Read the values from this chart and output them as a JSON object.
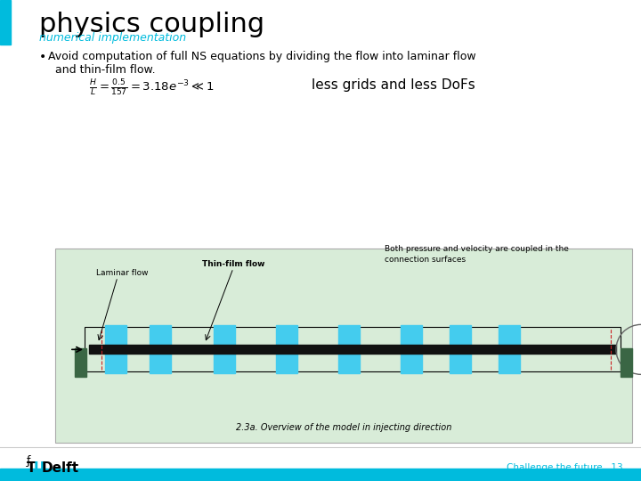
{
  "title": "physics coupling",
  "subtitle": "numerical implementation",
  "subtitle_color": "#00BBDD",
  "title_color": "#000000",
  "bg_color": "#FFFFFF",
  "left_bar_color": "#00BBDD",
  "bottom_bar_color": "#00BBDD",
  "figure_bg": "#D8ECD8",
  "blue_rect_color": "#44CCEE",
  "green_rect_color": "#3A6644",
  "beam_color": "#111111",
  "dashed_color": "#CC2222",
  "circle_color": "#666666",
  "footer_text": "Challenge the future   13",
  "footer_color": "#00BBDD",
  "fig_caption": "2.3a. Overview of the model in injecting direction",
  "laminar_label": "Laminar flow",
  "thinfilm_label": "Thin-film flow",
  "coupled_label": "Both pressure and velocity are coupled in the\nconnection surfaces",
  "annotation_text": "less grids and less DoFs"
}
